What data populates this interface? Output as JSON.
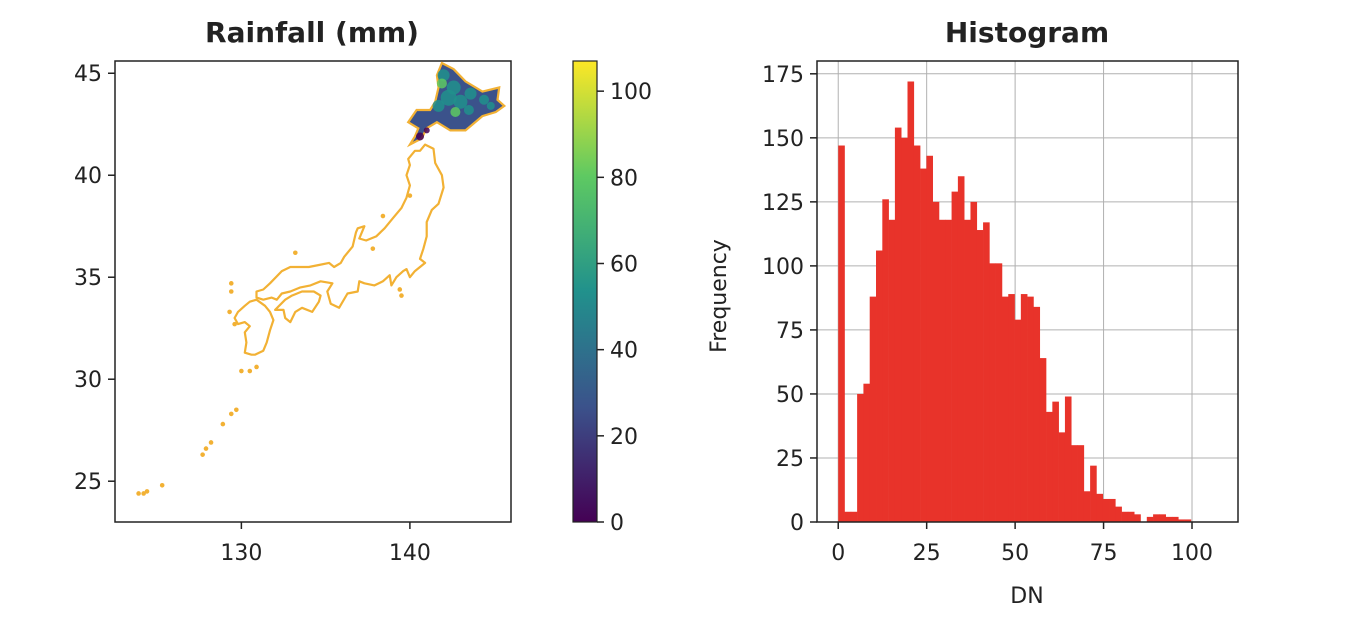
{
  "colors": {
    "coastline": "#f2b134",
    "hist_bar": "#e8332a",
    "grid": "#b0b0b0",
    "viridis": [
      "#440154",
      "#3b528b",
      "#21918c",
      "#5ec962",
      "#fde725"
    ]
  },
  "chart_data": [
    {
      "type": "heatmap",
      "title": "Rainfall (mm)",
      "xlabel": "",
      "ylabel": "",
      "xlim": [
        122.5,
        146
      ],
      "ylim": [
        23,
        45.6
      ],
      "x_ticks": [
        130,
        140
      ],
      "y_ticks": [
        25,
        30,
        35,
        40,
        45
      ],
      "colorbar": {
        "min": 0,
        "max": 107,
        "ticks": [
          0,
          20,
          40,
          60,
          80,
          100
        ],
        "colormap": "viridis"
      },
      "grid": false
    },
    {
      "type": "bar",
      "title": "Histogram",
      "xlabel": "DN",
      "ylabel": "Frequency",
      "xlim": [
        -6,
        113
      ],
      "ylim": [
        0,
        180
      ],
      "x_ticks": [
        0,
        25,
        50,
        75,
        100
      ],
      "y_ticks": [
        0,
        25,
        50,
        75,
        100,
        125,
        150,
        175
      ],
      "grid": true,
      "bin_start": 0,
      "bin_width": 1.78,
      "values": [
        147,
        4,
        4,
        50,
        54,
        88,
        106,
        126,
        118,
        154,
        150,
        172,
        147,
        138,
        143,
        125,
        118,
        118,
        129,
        135,
        118,
        125,
        114,
        117,
        101,
        101,
        88,
        89,
        79,
        89,
        88,
        84,
        64,
        43,
        47,
        35,
        49,
        30,
        30,
        12,
        22,
        11,
        9,
        9,
        6,
        4,
        4,
        3,
        0,
        2,
        3,
        3,
        2,
        2,
        1,
        1
      ]
    }
  ]
}
